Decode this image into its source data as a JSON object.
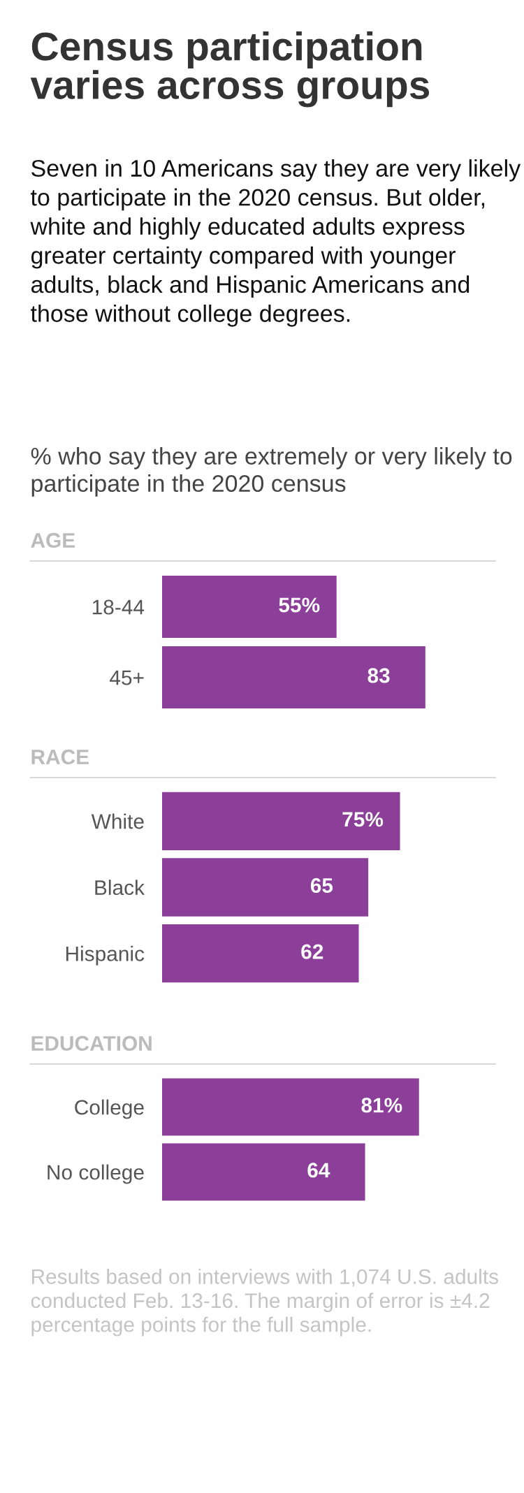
{
  "chart_data": [
    {
      "type": "other",
      "title": "Census participation varies across groups",
      "subtitle": "Seven in 10 Americans say they are very likely to participate in the 2020 census. But older, white and highly educated adults express greater certainty compared with younger adults, black and Hispanic Americans and those without college degrees.",
      "annotations": [
        "% who say they are extremely or very likely to participate in the 2020 census"
      ]
    },
    {
      "type": "bar",
      "orientation": "horizontal",
      "title": "AGE",
      "categories": [
        "18-44",
        "45+"
      ],
      "values": [
        55,
        83
      ],
      "value_labels": [
        "55%",
        "83"
      ],
      "color": "#8b3f98",
      "tick_labels": "y",
      "grid": false,
      "legend": false
    },
    {
      "type": "bar",
      "orientation": "horizontal",
      "title": "RACE",
      "categories": [
        "White",
        "Black",
        "Hispanic"
      ],
      "values": [
        75,
        65,
        62
      ],
      "value_labels": [
        "75%",
        "65",
        "62"
      ],
      "color": "#8b3f98",
      "tick_labels": "y",
      "grid": false,
      "legend": false
    },
    {
      "type": "bar",
      "orientation": "horizontal",
      "title": "EDUCATION",
      "categories": [
        "College",
        "No college"
      ],
      "values": [
        81,
        64
      ],
      "value_labels": [
        "81%",
        "64"
      ],
      "color": "#8b3f98",
      "tick_labels": "y",
      "grid": false,
      "legend": false,
      "annotations": [
        "Results based on interviews with 1,074 U.S. adults conducted Feb. 13-16. The margin of error is ±4.2 percentage points for the full sample."
      ]
    }
  ]
}
